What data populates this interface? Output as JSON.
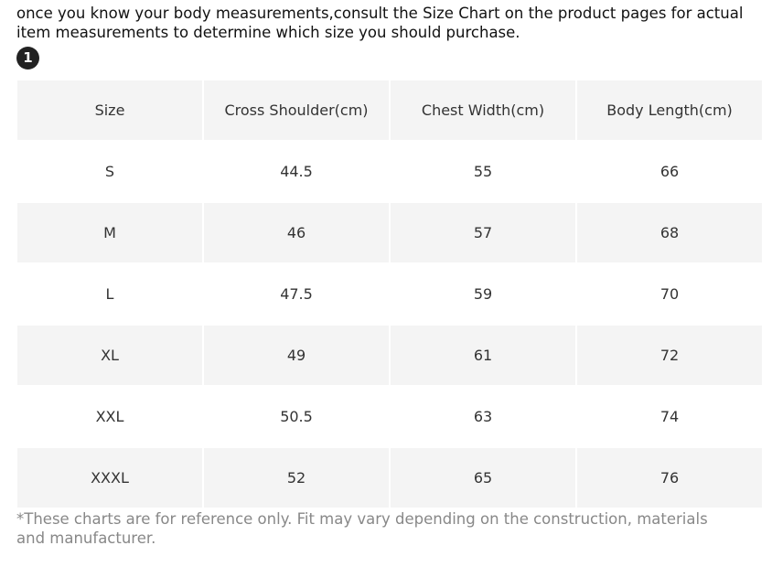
{
  "intro_text": "once you know your body measurements,consult the Size Chart on the product pages for actual item measurements to determine which size you should purchase.",
  "step_badge": "1",
  "size_table": {
    "headers": [
      "Size",
      "Cross Shoulder(cm)",
      "Chest Width(cm)",
      "Body Length(cm)"
    ],
    "rows": [
      [
        "S",
        "44.5",
        "55",
        "66"
      ],
      [
        "M",
        "46",
        "57",
        "68"
      ],
      [
        "L",
        "47.5",
        "59",
        "70"
      ],
      [
        "XL",
        "49",
        "61",
        "72"
      ],
      [
        "XXL",
        "50.5",
        "63",
        "74"
      ],
      [
        "XXXL",
        "52",
        "65",
        "76"
      ]
    ]
  },
  "footnote": "*These charts are for reference only. Fit may vary depending on the construction, materials and manufacturer.",
  "colors": {
    "header_bg": "#f4f4f4",
    "stripe_bg": "#f4f4f4",
    "footnote_text": "#888888",
    "badge_bg": "#222222"
  }
}
